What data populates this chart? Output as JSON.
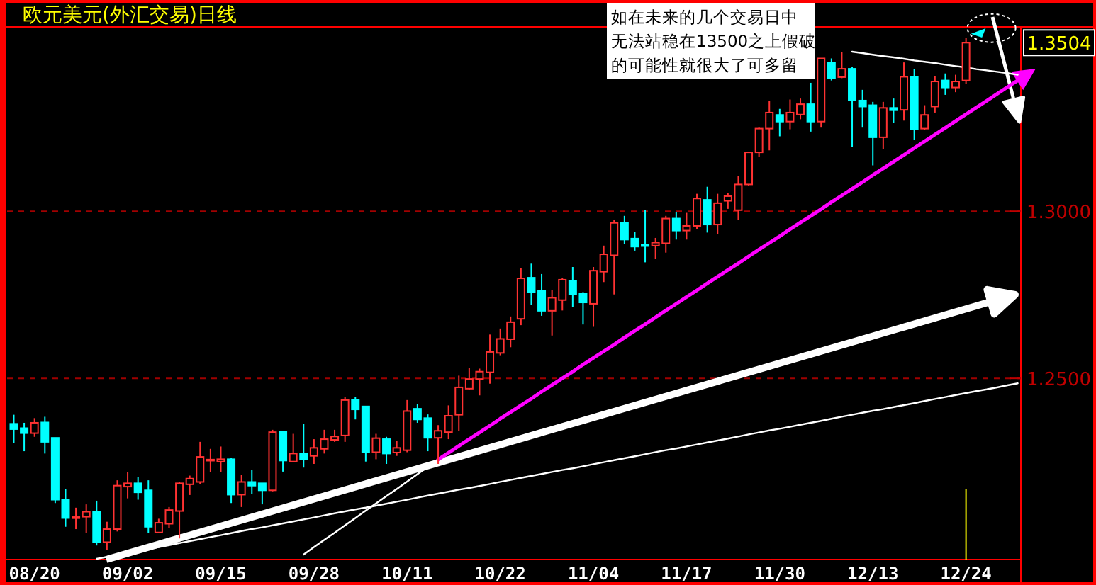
{
  "chart_data": {
    "type": "candlestick",
    "title": "欧元美元(外汇交易)日线",
    "annotations": [
      "如在未来的几个交易日中",
      "无法站稳在13500之上假破",
      "的可能性就很大了可多留",
      "1.3504"
    ],
    "colors": [
      "#00ffff",
      "#00ffff",
      "#ff3232",
      "#00ffff",
      "#00ffff",
      "#00ffff",
      "#ff3232",
      "#ff3232",
      "#00ffff",
      "#ff3232",
      "#ff3232",
      "#ff3232",
      "#00ffff",
      "#00ffff",
      "#ff3232",
      "#ff3232",
      "#ff3232",
      "#ff3232",
      "#ff3232",
      "#ff3232",
      "#ff3232",
      "#00ffff",
      "#ff3232",
      "#00ffff",
      "#00ffff",
      "#ff3232",
      "#00ffff",
      "#ff3232",
      "#00ffff",
      "#ff3232",
      "#ff3232",
      "#ff3232",
      "#ff3232",
      "#00ffff",
      "#00ffff",
      "#ff3232",
      "#00ffff",
      "#ff3232",
      "#ff3232",
      "#00ffff",
      "#00ffff",
      "#ff3232",
      "#ff3232",
      "#ff3232",
      "#ff3232",
      "#ff3232",
      "#ff3232",
      "#ff3232",
      "#ff3232",
      "#ff3232",
      "#00ffff",
      "#00ffff",
      "#ff3232",
      "#ff3232",
      "#00ffff",
      "#00ffff",
      "#ff3232",
      "#ff3232",
      "#ff3232",
      "#00ffff",
      "#00ffff",
      "#00ffff",
      "#ff3232",
      "#ff3232",
      "#00ffff",
      "#ff3232",
      "#ff3232",
      "#00ffff",
      "#ff3232",
      "#ff3232",
      "#ff3232",
      "#ff3232",
      "#ff3232",
      "#ff3232",
      "#00ffff",
      "#ff3232",
      "#ff3232",
      "#00ffff",
      "#ff3232",
      "#00ffff",
      "#ff3232",
      "#00ffff",
      "#00ffff",
      "#00ffff",
      "#ff3232",
      "#00ffff",
      "#ff3232",
      "#00ffff",
      "#ff3232",
      "#ff3232",
      "#00ffff",
      "#ff3232",
      "#ff3232",
      null,
      null,
      null,
      null,
      null
    ],
    "categories": [
      null,
      null,
      "08/20",
      null,
      null,
      null,
      null,
      null,
      null,
      null,
      null,
      "09/02",
      null,
      null,
      null,
      null,
      null,
      null,
      null,
      null,
      "09/15",
      null,
      null,
      null,
      null,
      null,
      null,
      null,
      null,
      "09/28",
      null,
      null,
      null,
      null,
      null,
      null,
      null,
      null,
      "10/11",
      null,
      null,
      null,
      null,
      null,
      null,
      null,
      null,
      "10/22",
      null,
      null,
      null,
      null,
      null,
      null,
      null,
      null,
      "11/04",
      null,
      null,
      null,
      null,
      null,
      null,
      null,
      null,
      "11/17",
      null,
      null,
      null,
      null,
      null,
      null,
      null,
      null,
      "11/30",
      null,
      null,
      null,
      null,
      null,
      null,
      null,
      null,
      "12/13",
      null,
      null,
      null,
      null,
      null,
      null,
      null,
      null,
      "12/24",
      null,
      null,
      null,
      null,
      null
    ],
    "ohlc": [
      [
        1.2364,
        1.2391,
        1.2306,
        1.2348
      ],
      [
        1.2351,
        1.2367,
        1.2282,
        1.2336
      ],
      [
        1.2336,
        1.2381,
        1.2325,
        1.2367
      ],
      [
        1.2368,
        1.2385,
        1.2275,
        1.231
      ],
      [
        1.2322,
        1.2322,
        1.2127,
        1.2137
      ],
      [
        1.2138,
        1.2169,
        1.2056,
        1.2082
      ],
      [
        1.2082,
        1.2113,
        1.2049,
        1.2085
      ],
      [
        1.2086,
        1.2123,
        1.2038,
        1.2101
      ],
      [
        1.2101,
        1.2134,
        1.2,
        1.201
      ],
      [
        1.201,
        1.2071,
        1.1986,
        1.2049
      ],
      [
        1.2049,
        1.2195,
        1.2042,
        1.2179
      ],
      [
        1.2176,
        1.2219,
        1.2141,
        1.2186
      ],
      [
        1.2186,
        1.2204,
        1.2137,
        1.2159
      ],
      [
        1.2165,
        1.2195,
        1.2038,
        1.2056
      ],
      [
        1.2039,
        1.208,
        1.2038,
        1.2068
      ],
      [
        1.2065,
        1.2115,
        1.2052,
        1.2106
      ],
      [
        1.2103,
        1.219,
        1.2021,
        1.2186
      ],
      [
        1.2183,
        1.2209,
        1.2151,
        1.22
      ],
      [
        1.219,
        1.231,
        1.2183,
        1.2265
      ],
      [
        1.2254,
        1.2289,
        1.2219,
        1.2257
      ],
      [
        1.2251,
        1.2296,
        1.2219,
        1.2258
      ],
      [
        1.2258,
        1.2261,
        1.2127,
        1.2152
      ],
      [
        1.2152,
        1.2212,
        1.2115,
        1.219
      ],
      [
        1.219,
        1.2226,
        1.2155,
        1.2179
      ],
      [
        1.2186,
        1.2186,
        1.2123,
        1.2165
      ],
      [
        1.2165,
        1.2346,
        1.2162,
        1.2339
      ],
      [
        1.234,
        1.2343,
        1.2221,
        1.2254
      ],
      [
        1.2251,
        1.2334,
        1.225,
        1.2275
      ],
      [
        1.2275,
        1.2364,
        1.2233,
        1.2258
      ],
      [
        1.2268,
        1.2318,
        1.2244,
        1.2292
      ],
      [
        1.2289,
        1.2346,
        1.2275,
        1.2318
      ],
      [
        1.2316,
        1.2346,
        1.231,
        1.2326
      ],
      [
        1.2329,
        1.2445,
        1.231,
        1.2435
      ],
      [
        1.2435,
        1.2445,
        1.2377,
        1.2407
      ],
      [
        1.2416,
        1.2416,
        1.2251,
        1.2279
      ],
      [
        1.2279,
        1.2334,
        1.2258,
        1.2321
      ],
      [
        1.2318,
        1.2325,
        1.2244,
        1.2275
      ],
      [
        1.2278,
        1.2313,
        1.2268,
        1.2292
      ],
      [
        1.2285,
        1.2435,
        1.2279,
        1.2402
      ],
      [
        1.2409,
        1.2423,
        1.2367,
        1.2377
      ],
      [
        1.2381,
        1.2392,
        1.2282,
        1.2322
      ],
      [
        1.2322,
        1.236,
        1.2244,
        1.2343
      ],
      [
        1.2339,
        1.2419,
        1.2318,
        1.2388
      ],
      [
        1.2391,
        1.2508,
        1.2342,
        1.2473
      ],
      [
        1.2469,
        1.2532,
        1.2466,
        1.2498
      ],
      [
        1.2498,
        1.2529,
        1.2449,
        1.252
      ],
      [
        1.2518,
        1.2631,
        1.2484,
        1.2579
      ],
      [
        1.2576,
        1.2649,
        1.2569,
        1.2618
      ],
      [
        1.2617,
        1.2685,
        1.2593,
        1.2668
      ],
      [
        1.2678,
        1.2829,
        1.2659,
        1.2799
      ],
      [
        1.2801,
        1.2843,
        1.272,
        1.2758
      ],
      [
        1.2762,
        1.2812,
        1.2687,
        1.2702
      ],
      [
        1.2702,
        1.2765,
        1.2628,
        1.2741
      ],
      [
        1.2734,
        1.2801,
        1.2703,
        1.2795
      ],
      [
        1.2791,
        1.2833,
        1.2713,
        1.2751
      ],
      [
        1.2753,
        1.2758,
        1.2661,
        1.2727
      ],
      [
        1.2723,
        1.2833,
        1.2654,
        1.2822
      ],
      [
        1.2819,
        1.2897,
        1.2788,
        1.2871
      ],
      [
        1.2868,
        1.2974,
        1.2751,
        1.2965
      ],
      [
        1.2965,
        1.2986,
        1.2901,
        1.2915
      ],
      [
        1.2918,
        1.2939,
        1.2882,
        1.2894
      ],
      [
        1.2899,
        1.3003,
        1.2847,
        1.2897
      ],
      [
        1.2897,
        1.292,
        1.2857,
        1.2906
      ],
      [
        1.2904,
        1.2986,
        1.2876,
        1.2978
      ],
      [
        1.2978,
        1.2998,
        1.2915,
        1.2942
      ],
      [
        1.2942,
        1.2995,
        1.2915,
        1.2956
      ],
      [
        1.2956,
        1.3052,
        1.2946,
        1.3038
      ],
      [
        1.3034,
        1.3073,
        1.2936,
        1.296
      ],
      [
        1.296,
        1.3052,
        1.2932,
        1.3024
      ],
      [
        1.3031,
        1.3055,
        1.3007,
        1.3045
      ],
      [
        1.3003,
        1.3106,
        1.2974,
        1.308
      ],
      [
        1.308,
        1.3176,
        1.3077,
        1.3176
      ],
      [
        1.3176,
        1.325,
        1.3162,
        1.3247
      ],
      [
        1.3247,
        1.333,
        1.3182,
        1.3295
      ],
      [
        1.3288,
        1.3306,
        1.3224,
        1.3268
      ],
      [
        1.3268,
        1.3334,
        1.3245,
        1.3295
      ],
      [
        1.3289,
        1.3337,
        1.3275,
        1.332
      ],
      [
        1.332,
        1.3384,
        1.3238,
        1.3268
      ],
      [
        1.3268,
        1.3457,
        1.325,
        1.3457
      ],
      [
        1.3445,
        1.3457,
        1.3391,
        1.3398
      ],
      [
        1.3401,
        1.3476,
        1.3398,
        1.3426
      ],
      [
        1.3426,
        1.3431,
        1.3193,
        1.3331
      ],
      [
        1.3331,
        1.3363,
        1.325,
        1.3313
      ],
      [
        1.3317,
        1.3327,
        1.3137,
        1.3221
      ],
      [
        1.3221,
        1.3327,
        1.3186,
        1.3309
      ],
      [
        1.3309,
        1.3337,
        1.3264,
        1.3302
      ],
      [
        1.3303,
        1.3445,
        1.3271,
        1.3402
      ],
      [
        1.3402,
        1.3426,
        1.3214,
        1.3245
      ],
      [
        1.3247,
        1.3317,
        1.3242,
        1.3288
      ],
      [
        1.3313,
        1.3405,
        1.3295,
        1.3388
      ],
      [
        1.3391,
        1.3412,
        1.3348,
        1.337
      ],
      [
        1.337,
        1.3408,
        1.3356,
        1.3388
      ],
      [
        1.3391,
        1.3518,
        1.338,
        1.3504
      ],
      null,
      null,
      null,
      null,
      null
    ],
    "series": [
      {
        "type": "line",
        "color": "#ffffff",
        "values": [
          null,
          null,
          null,
          null,
          null,
          null,
          null,
          null,
          1.196,
          1.1966,
          1.1972,
          1.1978,
          1.1984,
          1.199,
          1.1995,
          1.2001,
          1.2007,
          1.2013,
          1.2019,
          1.2025,
          1.2031,
          1.2037,
          1.2043,
          1.2049,
          1.2054,
          1.206,
          1.2066,
          1.2072,
          1.2078,
          1.2084,
          1.209,
          1.2096,
          1.2102,
          1.2108,
          1.2113,
          1.2119,
          1.2125,
          1.2131,
          1.2137,
          1.2143,
          1.2149,
          1.2155,
          1.2161,
          1.2167,
          1.2172,
          1.2178,
          1.2184,
          1.219,
          1.2196,
          1.2202,
          1.2208,
          1.2214,
          1.222,
          1.2226,
          1.2231,
          1.2237,
          1.2243,
          1.2249,
          1.2255,
          1.2261,
          1.2267,
          1.2273,
          1.2279,
          1.2285,
          1.229,
          1.2296,
          1.2302,
          1.2308,
          1.2314,
          1.232,
          1.2326,
          1.2332,
          1.2338,
          1.2344,
          1.2349,
          1.2355,
          1.2361,
          1.2367,
          1.2373,
          1.2379,
          1.2385,
          1.2391,
          1.2397,
          1.2403,
          1.2408,
          1.2414,
          1.242,
          1.2426,
          1.2432,
          1.2438,
          1.2444,
          1.245,
          1.2456,
          1.2462,
          1.2467,
          1.2473,
          1.2479,
          1.2485
        ]
      },
      {
        "type": "line",
        "color": "#ffffff",
        "values": [
          null,
          null,
          null,
          null,
          null,
          null,
          null,
          null,
          null,
          null,
          null,
          null,
          null,
          null,
          null,
          null,
          null,
          null,
          null,
          null,
          null,
          null,
          null,
          null,
          null,
          null,
          null,
          null,
          1.1973,
          1.1995,
          1.2017,
          1.2038,
          1.206,
          1.2082,
          1.2104,
          1.2126,
          1.2148,
          1.2169,
          1.2191,
          1.2213,
          1.2235,
          1.2257,
          null,
          null,
          null,
          null,
          null,
          null,
          null,
          null,
          null,
          null,
          null,
          null,
          null,
          null,
          null,
          null,
          null,
          null,
          null,
          null,
          null,
          null,
          null,
          null,
          null,
          null,
          null,
          null,
          null,
          null,
          null,
          null,
          null,
          null,
          null,
          null,
          null,
          null,
          null,
          null,
          null,
          null,
          null,
          null,
          null,
          null,
          null,
          null,
          null,
          null,
          null,
          null,
          null,
          null,
          null,
          null
        ]
      },
      {
        "type": "line",
        "color": "#ff00ff",
        "values": [
          null,
          null,
          null,
          null,
          null,
          null,
          null,
          null,
          null,
          null,
          null,
          null,
          null,
          null,
          null,
          null,
          null,
          null,
          null,
          null,
          null,
          null,
          null,
          null,
          null,
          null,
          null,
          null,
          null,
          null,
          null,
          null,
          null,
          null,
          null,
          null,
          null,
          null,
          null,
          null,
          null,
          1.2257,
          1.2277,
          1.2298,
          1.2318,
          1.2338,
          1.2358,
          1.2379,
          1.2399,
          1.2419,
          1.2439,
          1.246,
          1.248,
          1.25,
          1.252,
          1.2541,
          1.2561,
          1.2581,
          1.2601,
          1.2622,
          1.2642,
          1.2662,
          1.2682,
          1.2703,
          1.2723,
          1.2743,
          1.2763,
          1.2784,
          1.2804,
          1.2824,
          1.2844,
          1.2865,
          1.2885,
          1.2905,
          1.2925,
          1.2946,
          1.2966,
          1.2986,
          1.3006,
          1.3027,
          1.3047,
          1.3067,
          1.3087,
          1.3108,
          1.3128,
          1.3148,
          1.3168,
          1.3189,
          1.3209,
          1.3229,
          1.3249,
          1.327,
          1.329,
          1.331,
          1.333,
          1.3351,
          1.3371,
          1.3391
        ]
      },
      {
        "type": "line",
        "color": "#ffffff",
        "values": [
          null,
          null,
          null,
          null,
          null,
          null,
          null,
          null,
          null,
          null,
          null,
          null,
          null,
          null,
          null,
          null,
          null,
          null,
          null,
          null,
          null,
          null,
          null,
          null,
          null,
          null,
          null,
          null,
          null,
          null,
          null,
          null,
          null,
          null,
          null,
          null,
          null,
          null,
          null,
          null,
          null,
          null,
          null,
          null,
          null,
          null,
          null,
          null,
          null,
          null,
          null,
          null,
          null,
          null,
          null,
          null,
          null,
          null,
          null,
          null,
          null,
          null,
          null,
          null,
          null,
          null,
          null,
          null,
          null,
          null,
          null,
          null,
          null,
          null,
          null,
          null,
          null,
          null,
          null,
          null,
          null,
          1.3477,
          1.3473,
          1.3468,
          1.3464,
          1.346,
          1.3456,
          1.3451,
          1.3447,
          1.3443,
          1.3438,
          1.3434,
          1.343,
          1.3425,
          1.3421,
          1.3417,
          1.3413,
          1.3408
        ]
      }
    ],
    "ylim": [
      1.1958,
      1.3547
    ],
    "yticks": [
      {
        "value": 1.3,
        "label": "1.3000"
      },
      {
        "value": 1.25,
        "label": "1.2500"
      }
    ],
    "grid": "y",
    "ref_lines": [
      {
        "axis": "x",
        "value": "12/24",
        "color": "#ffff00"
      }
    ]
  }
}
